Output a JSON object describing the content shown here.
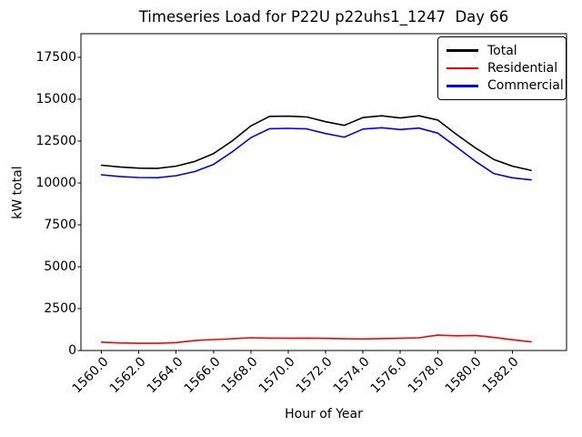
{
  "chart_data": {
    "type": "line",
    "title": "Timeseries Load for P22U p22uhs1_1247  Day 66",
    "xlabel": "Hour of Year",
    "ylabel": "kW total",
    "grid": false,
    "legend_position": "upper right",
    "xlim": [
      1558.9,
      1584.9
    ],
    "ylim": [
      0,
      18900
    ],
    "xtick_labels": [
      "1560.0",
      "1562.0",
      "1564.0",
      "1566.0",
      "1568.0",
      "1570.0",
      "1572.0",
      "1574.0",
      "1576.0",
      "1578.0",
      "1580.0",
      "1582.0"
    ],
    "xtick_rotation": 45,
    "ytick_values": [
      0,
      2500,
      5000,
      7500,
      10000,
      12500,
      15000,
      17500
    ],
    "x": [
      1560,
      1561,
      1562,
      1563,
      1564,
      1565,
      1566,
      1567,
      1568,
      1569,
      1570,
      1571,
      1572,
      1573,
      1574,
      1575,
      1576,
      1577,
      1578,
      1579,
      1580,
      1581,
      1582,
      1583
    ],
    "series": [
      {
        "name": "Total",
        "color": "#000000",
        "values": [
          11050,
          10950,
          10880,
          10870,
          11000,
          11280,
          11750,
          12500,
          13400,
          13970,
          13980,
          13930,
          13650,
          13430,
          13900,
          14000,
          13870,
          14000,
          13750,
          12900,
          12100,
          11400,
          11000,
          10750
        ]
      },
      {
        "name": "Residential",
        "color": "#ff0000",
        "values": [
          500,
          450,
          430,
          430,
          470,
          590,
          650,
          700,
          760,
          740,
          730,
          740,
          720,
          700,
          690,
          710,
          730,
          760,
          920,
          880,
          900,
          780,
          640,
          520
        ]
      },
      {
        "name": "Commercial",
        "color": "#0000ff",
        "values": [
          10480,
          10380,
          10320,
          10310,
          10430,
          10680,
          11100,
          11850,
          12700,
          13230,
          13250,
          13220,
          12940,
          12730,
          13210,
          13290,
          13180,
          13270,
          12970,
          12150,
          11300,
          10560,
          10300,
          10180
        ]
      }
    ]
  }
}
